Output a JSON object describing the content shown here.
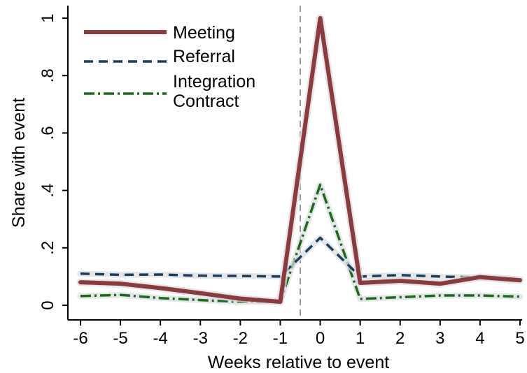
{
  "chart_data": {
    "type": "line",
    "title": "",
    "xlabel": "Weeks relative to event",
    "ylabel": "Share with event",
    "x": [
      -6,
      -5,
      -4,
      -3,
      -2,
      -1,
      0,
      1,
      2,
      3,
      4,
      5
    ],
    "xlim": [
      -6,
      5
    ],
    "ylim": [
      0,
      1
    ],
    "x_ticks": [
      "-6",
      "-5",
      "-4",
      "-3",
      "-2",
      "-1",
      "0",
      "1",
      "2",
      "3",
      "4",
      "5"
    ],
    "y_ticks": [
      {
        "value": 0,
        "label": "0"
      },
      {
        "value": 0.2,
        "label": ".2"
      },
      {
        "value": 0.4,
        "label": ".4"
      },
      {
        "value": 0.6,
        "label": ".6"
      },
      {
        "value": 0.8,
        "label": ".8"
      },
      {
        "value": 1,
        "label": "1"
      }
    ],
    "reference_line_x": -0.5,
    "grid": false,
    "legend_position": "top-left",
    "series": [
      {
        "name": "Meeting",
        "color": "#8b3a3e",
        "style": "solid",
        "values": [
          0.08,
          0.075,
          0.06,
          0.042,
          0.023,
          0.012,
          1.0,
          0.078,
          0.085,
          0.075,
          0.098,
          0.087
        ]
      },
      {
        "name": "Referral",
        "color": "#1a3e5c",
        "style": "dashed",
        "values": [
          0.11,
          0.106,
          0.107,
          0.103,
          0.102,
          0.1,
          0.235,
          0.1,
          0.105,
          0.1,
          0.097,
          0.09
        ]
      },
      {
        "name": "Integration Contract",
        "legend_lines": [
          "Integration",
          "Contract"
        ],
        "color": "#1a6b1a",
        "style": "dashdot",
        "values": [
          0.032,
          0.036,
          0.025,
          0.018,
          0.012,
          0.013,
          0.42,
          0.022,
          0.028,
          0.034,
          0.034,
          0.03
        ]
      }
    ]
  }
}
